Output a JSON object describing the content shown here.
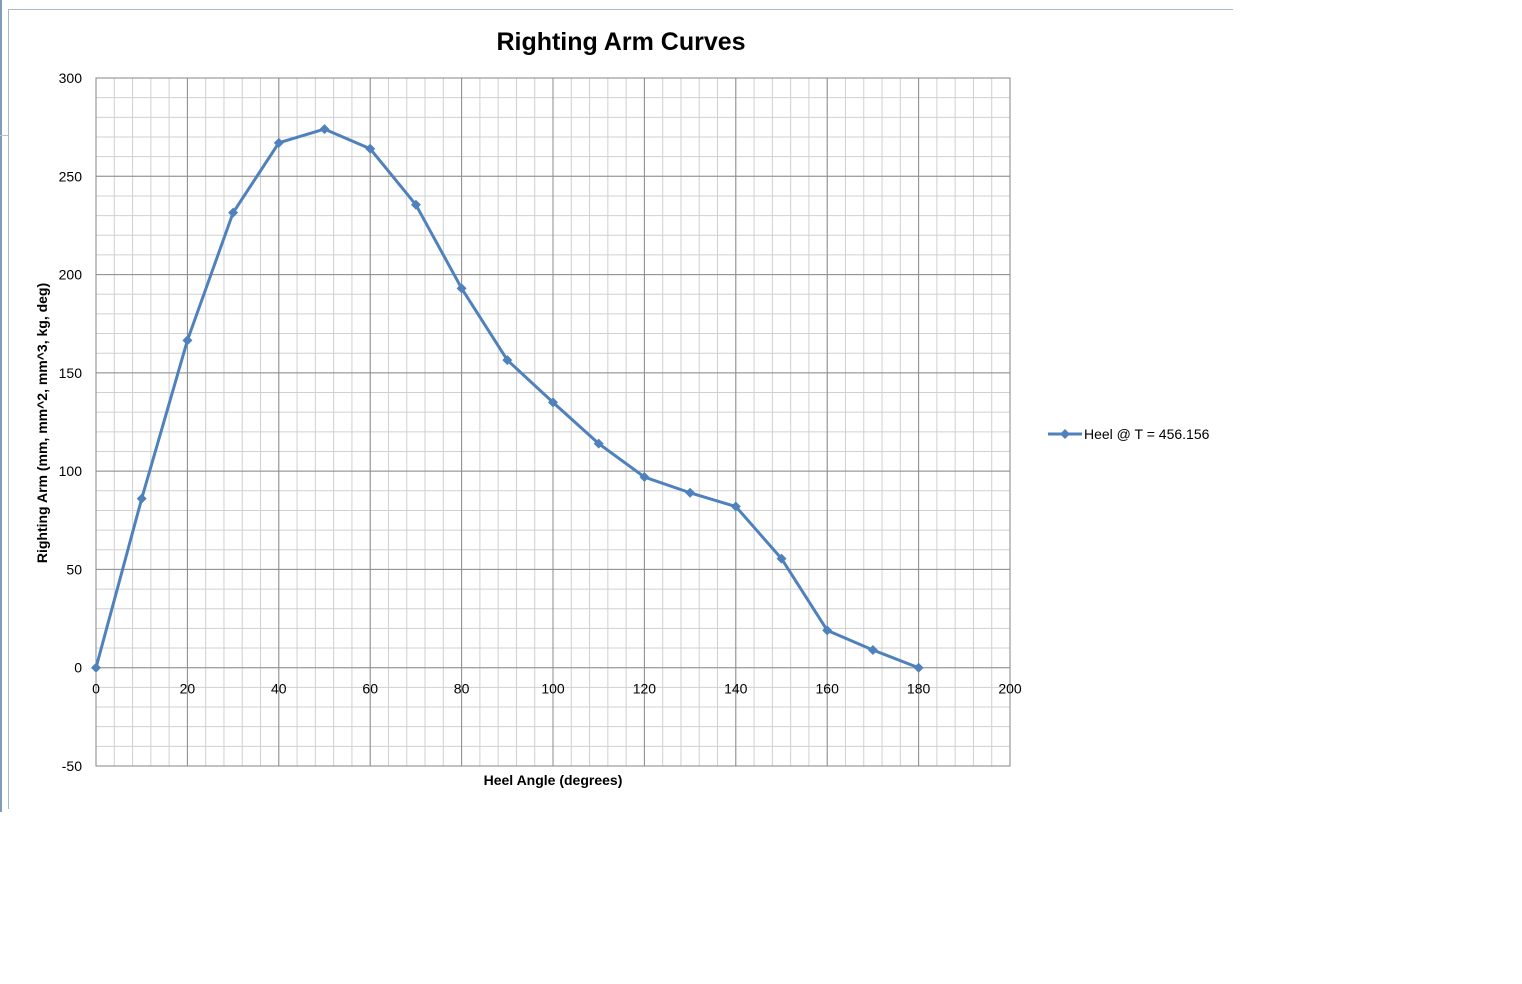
{
  "chart_data": {
    "type": "line",
    "title": "Righting Arm Curves",
    "xlabel": "Heel Angle (degrees)",
    "ylabel": "Righting Arm (mm, mm^2, mm^3, kg, deg)",
    "xlim": [
      0,
      200
    ],
    "ylim": [
      -50,
      300
    ],
    "x_ticks": [
      0,
      20,
      40,
      60,
      80,
      100,
      120,
      140,
      160,
      180,
      200
    ],
    "y_ticks": [
      -50,
      0,
      50,
      100,
      150,
      200,
      250,
      300
    ],
    "x_minor_step": 4,
    "y_minor_step": 10,
    "grid": true,
    "legend_position": "right",
    "series": [
      {
        "name": "Heel @ T = 456.156",
        "color": "#4f81bd",
        "marker": "diamond",
        "x": [
          0,
          10,
          20,
          30,
          40,
          50,
          60,
          70,
          80,
          90,
          100,
          110,
          120,
          130,
          140,
          150,
          160,
          170,
          180
        ],
        "y": [
          0,
          86,
          166.5,
          231.5,
          267,
          274,
          264,
          235.5,
          193,
          156.5,
          135,
          114,
          97,
          89,
          82,
          55.5,
          19,
          9,
          0
        ]
      }
    ]
  }
}
